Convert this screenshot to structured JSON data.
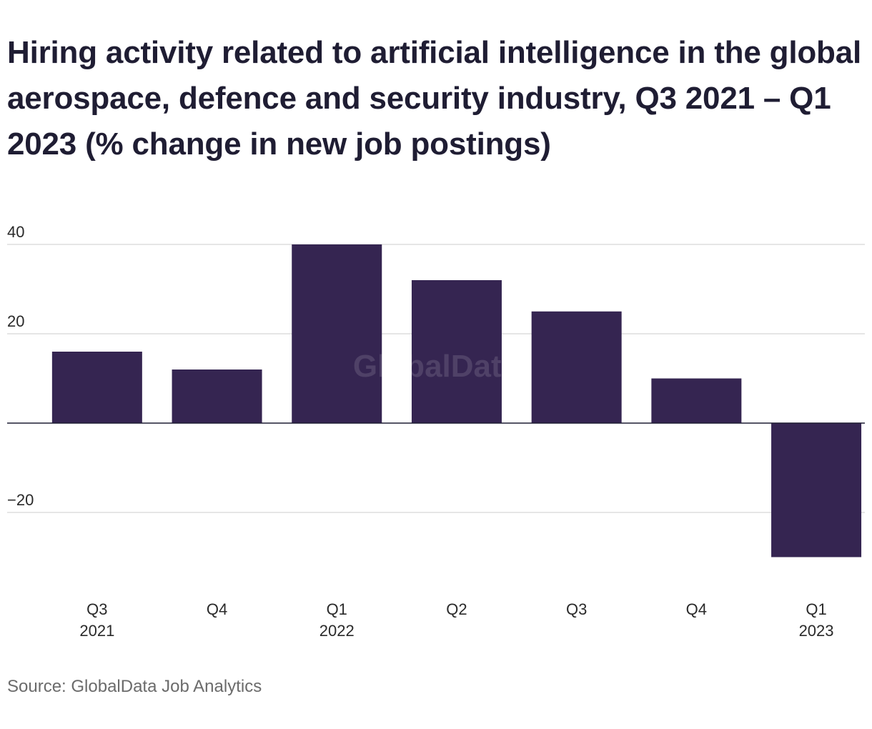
{
  "chart_data": {
    "type": "bar",
    "title": "Hiring activity related to artificial intelligence in the global aerospace, defence and security industry, Q3 2021 – Q1 2023 (% change in new job postings)",
    "categories": [
      "Q3 2021",
      "Q4",
      "Q1 2022",
      "Q2",
      "Q3",
      "Q4",
      "Q1 2023"
    ],
    "category_labels": [
      [
        "Q3",
        "2021"
      ],
      [
        "Q4"
      ],
      [
        "Q1",
        "2022"
      ],
      [
        "Q2"
      ],
      [
        "Q3"
      ],
      [
        "Q4"
      ],
      [
        "Q1",
        "2023"
      ]
    ],
    "values": [
      16,
      12,
      40,
      32,
      25,
      10,
      -30
    ],
    "ylim": [
      -35,
      40
    ],
    "yticks": [
      40,
      20,
      -20
    ],
    "ytick_labels": [
      "40",
      "20",
      "−20"
    ],
    "xlabel": "",
    "ylabel": "",
    "grid": true,
    "bar_color": "#352551",
    "watermark": "GlobalData",
    "source": "Source: GlobalData Job Analytics"
  }
}
